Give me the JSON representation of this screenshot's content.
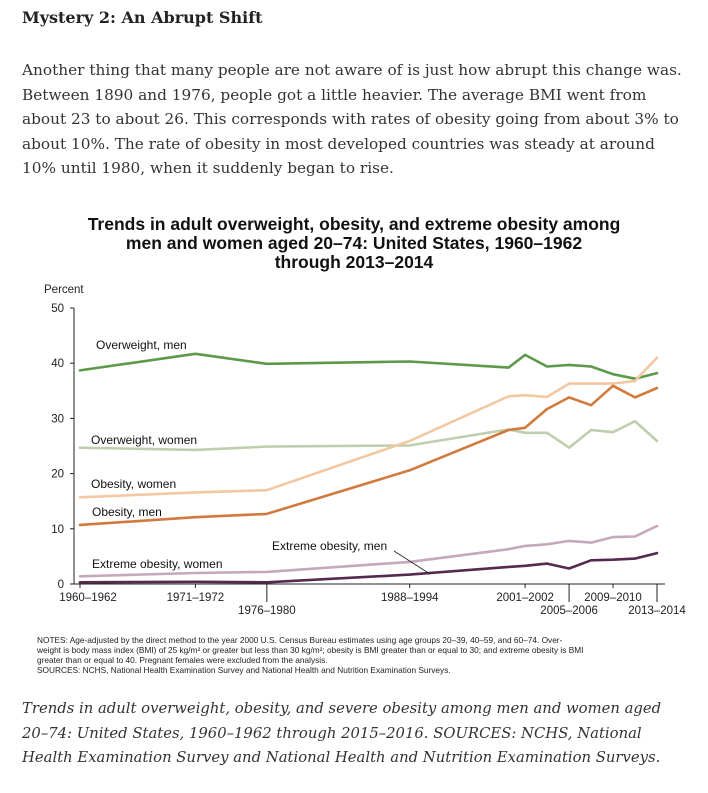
{
  "heading": "Mystery 2: An Abrupt Shift",
  "paragraph": "Another thing that many people are not aware of is just how abrupt this change was. Between 1890 and 1976, people got a little heavier. The average BMI went from about 23 to about 26. This corresponds with rates of obesity going from about 3% to about 10%. The rate of obesity in most developed countries was steady at around 10% until 1980, when it suddenly began to rise.",
  "caption": "Trends in adult overweight, obesity, and severe obesity among men and women aged 20–74: United States, 1960–1962 through 2015–2016. SOURCES: NCHS, National Health Examination Survey and National Health and Nutrition Examination Surveys.",
  "notes": [
    "NOTES: Age-adjusted by the direct method to the year 2000 U.S. Census Bureau estimates using age groups 20–39, 40–59, and 60–74. Over-",
    "weight is body mass index (BMI) of 25 kg/m² or greater but less than 30 kg/m²; obesity is BMI greater than or equal to 30; and extreme obesity is BMI",
    "greater than or equal to 40. Pregnant females were excluded from the analysis.",
    "SOURCES: NCHS, National Health Examination Survey and National Health and Nutrition Examination Surveys."
  ],
  "chart_data": {
    "type": "line",
    "title": [
      "Trends in adult overweight, obesity, and extreme obesity among",
      "men and women aged 20–74: United States, 1960–1962",
      "through 2013–2014"
    ],
    "ylabel": "Percent",
    "ylim": [
      0,
      50
    ],
    "yticks": [
      0,
      10,
      20,
      30,
      40,
      50
    ],
    "xlim": [
      1961,
      2014.5
    ],
    "xticks": [
      {
        "label": "1960–1962",
        "x": 1961,
        "row": 0
      },
      {
        "label": "1971–1972",
        "x": 1971.5,
        "row": 0
      },
      {
        "label": "1976–1980",
        "x": 1978,
        "row": 1
      },
      {
        "label": "1988–1994",
        "x": 1991,
        "row": 0
      },
      {
        "label": "2001–2002",
        "x": 2001.5,
        "row": 0
      },
      {
        "label": "2005–2006",
        "x": 2005.5,
        "row": 1
      },
      {
        "label": "2009–2010",
        "x": 2009.5,
        "row": 0
      },
      {
        "label": "2013–2014",
        "x": 2013.5,
        "row": 1
      }
    ],
    "x": [
      1961,
      1971.5,
      1978,
      1991,
      2000,
      2001.5,
      2003.5,
      2005.5,
      2007.5,
      2009.5,
      2011.5,
      2013.5
    ],
    "series": [
      {
        "name": "Overweight, men",
        "color": "#5a9a48",
        "values": [
          38.7,
          41.7,
          39.9,
          40.3,
          39.2,
          41.5,
          39.4,
          39.7,
          39.4,
          38.0,
          37.2,
          38.2
        ]
      },
      {
        "name": "Overweight, women",
        "color": "#bfcfae",
        "values": [
          24.7,
          24.3,
          24.9,
          25.1,
          28.0,
          27.4,
          27.4,
          24.7,
          27.9,
          27.5,
          29.5,
          25.9
        ]
      },
      {
        "name": "Obesity, women",
        "color": "#f3c7a2",
        "values": [
          15.7,
          16.6,
          17.0,
          25.9,
          34.0,
          34.2,
          33.9,
          36.3,
          36.3,
          36.3,
          36.8,
          41.0
        ]
      },
      {
        "name": "Obesity, men",
        "color": "#d27a3e",
        "values": [
          10.7,
          12.1,
          12.7,
          20.6,
          27.9,
          28.3,
          31.7,
          33.8,
          32.4,
          35.9,
          33.8,
          35.5
        ]
      },
      {
        "name": "Extreme obesity, women",
        "color": "#c6a8bc",
        "values": [
          1.4,
          2.0,
          2.2,
          4.0,
          6.3,
          6.9,
          7.2,
          7.8,
          7.5,
          8.5,
          8.6,
          10.5
        ]
      },
      {
        "name": "Extreme obesity, men",
        "color": "#562a4e",
        "values": [
          0.3,
          0.4,
          0.3,
          1.7,
          3.1,
          3.3,
          3.7,
          2.8,
          4.3,
          4.4,
          4.6,
          5.6
        ]
      }
    ],
    "series_labels": [
      {
        "text": "Overweight, men",
        "series": 0
      },
      {
        "text": "Overweight, women",
        "series": 1
      },
      {
        "text": "Obesity, women",
        "series": 2
      },
      {
        "text": "Obesity, men",
        "series": 3
      },
      {
        "text": "Extreme obesity, women",
        "series": 4
      },
      {
        "text": "Extreme obesity, men",
        "series": 5
      }
    ]
  }
}
